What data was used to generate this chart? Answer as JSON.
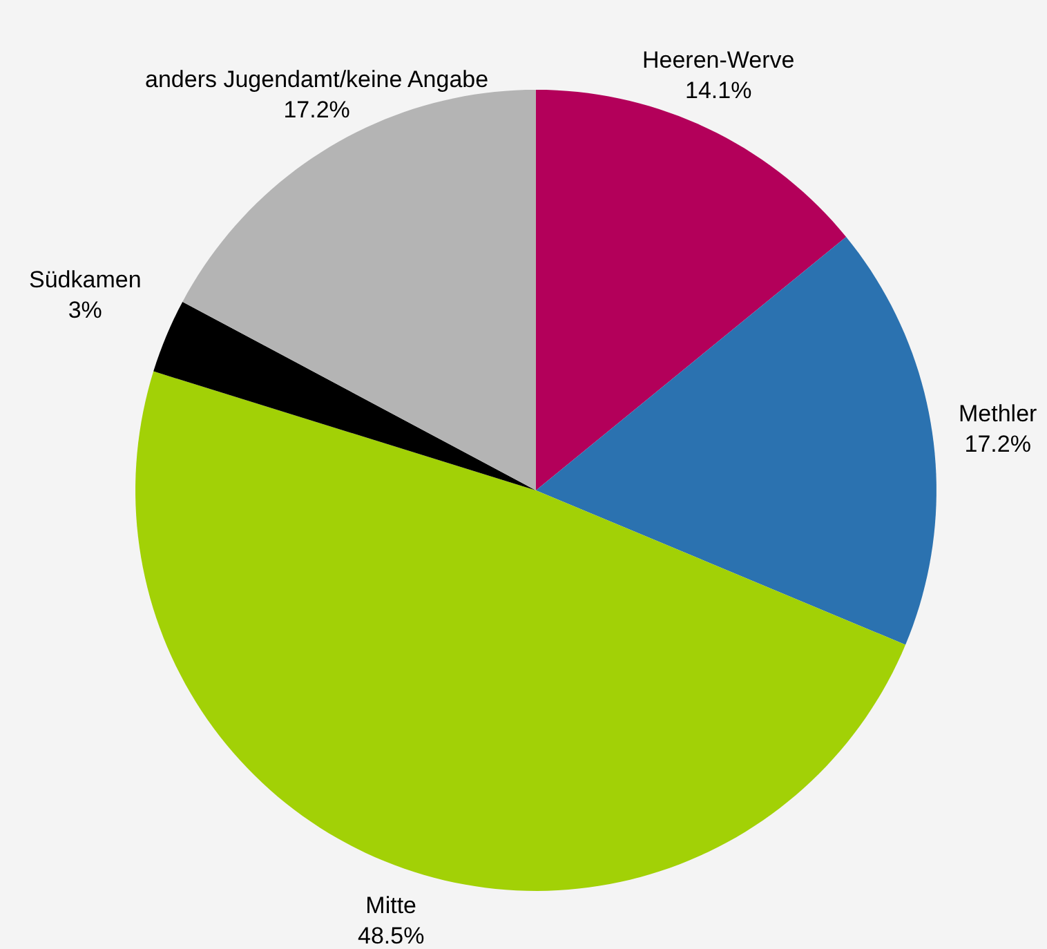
{
  "chart_data": {
    "type": "pie",
    "categories": [
      "Heeren-Werve",
      "Methler",
      "Mitte",
      "Südkamen",
      "anders Jugendamt/keine Angabe"
    ],
    "values": [
      14.1,
      17.2,
      48.5,
      3,
      17.2
    ],
    "value_labels": [
      "14.1%",
      "17.2%",
      "48.5%",
      "3%",
      "17.2%"
    ],
    "colors": [
      "#b3005a",
      "#2b72b0",
      "#a2d106",
      "#000000",
      "#b4b4b4"
    ],
    "legend": false
  }
}
